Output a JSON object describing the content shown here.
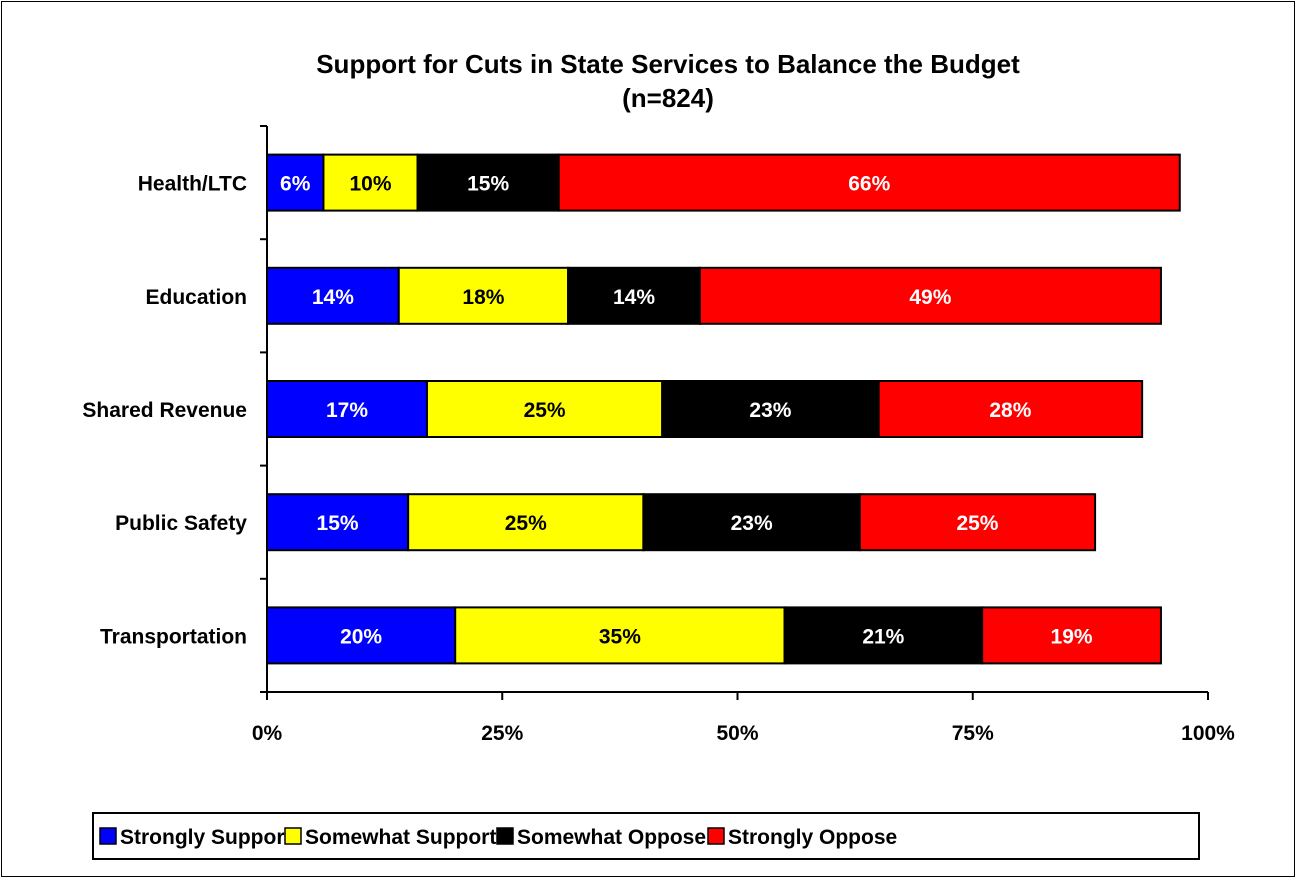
{
  "chart_data": {
    "type": "bar",
    "orientation": "horizontal",
    "stacked": true,
    "title": "Support for Cuts in State Services to Balance the Budget",
    "subtitle": "(n=824)",
    "categories": [
      "Health/LTC",
      "Education",
      "Shared Revenue",
      "Public Safety",
      "Transportation"
    ],
    "series": [
      {
        "name": "Strongly Support",
        "color": "#0000FF",
        "label_color": "#FFFFFF",
        "values": [
          6,
          14,
          17,
          15,
          20
        ]
      },
      {
        "name": "Somewhat Support",
        "color": "#FFFF00",
        "label_color": "#000000",
        "values": [
          10,
          18,
          25,
          25,
          35
        ]
      },
      {
        "name": "Somewhat Oppose",
        "color": "#000000",
        "label_color": "#FFFFFF",
        "values": [
          15,
          14,
          23,
          23,
          21
        ]
      },
      {
        "name": "Strongly Oppose",
        "color": "#FF0000",
        "label_color": "#FFFFFF",
        "values": [
          66,
          49,
          28,
          25,
          19
        ]
      }
    ],
    "value_suffix": "%",
    "xlim": [
      0,
      100
    ],
    "xticks": [
      0,
      25,
      50,
      75,
      100
    ],
    "xtick_labels": [
      "0%",
      "25%",
      "50%",
      "75%",
      "100%"
    ],
    "grid": false,
    "legend_position": "bottom"
  }
}
